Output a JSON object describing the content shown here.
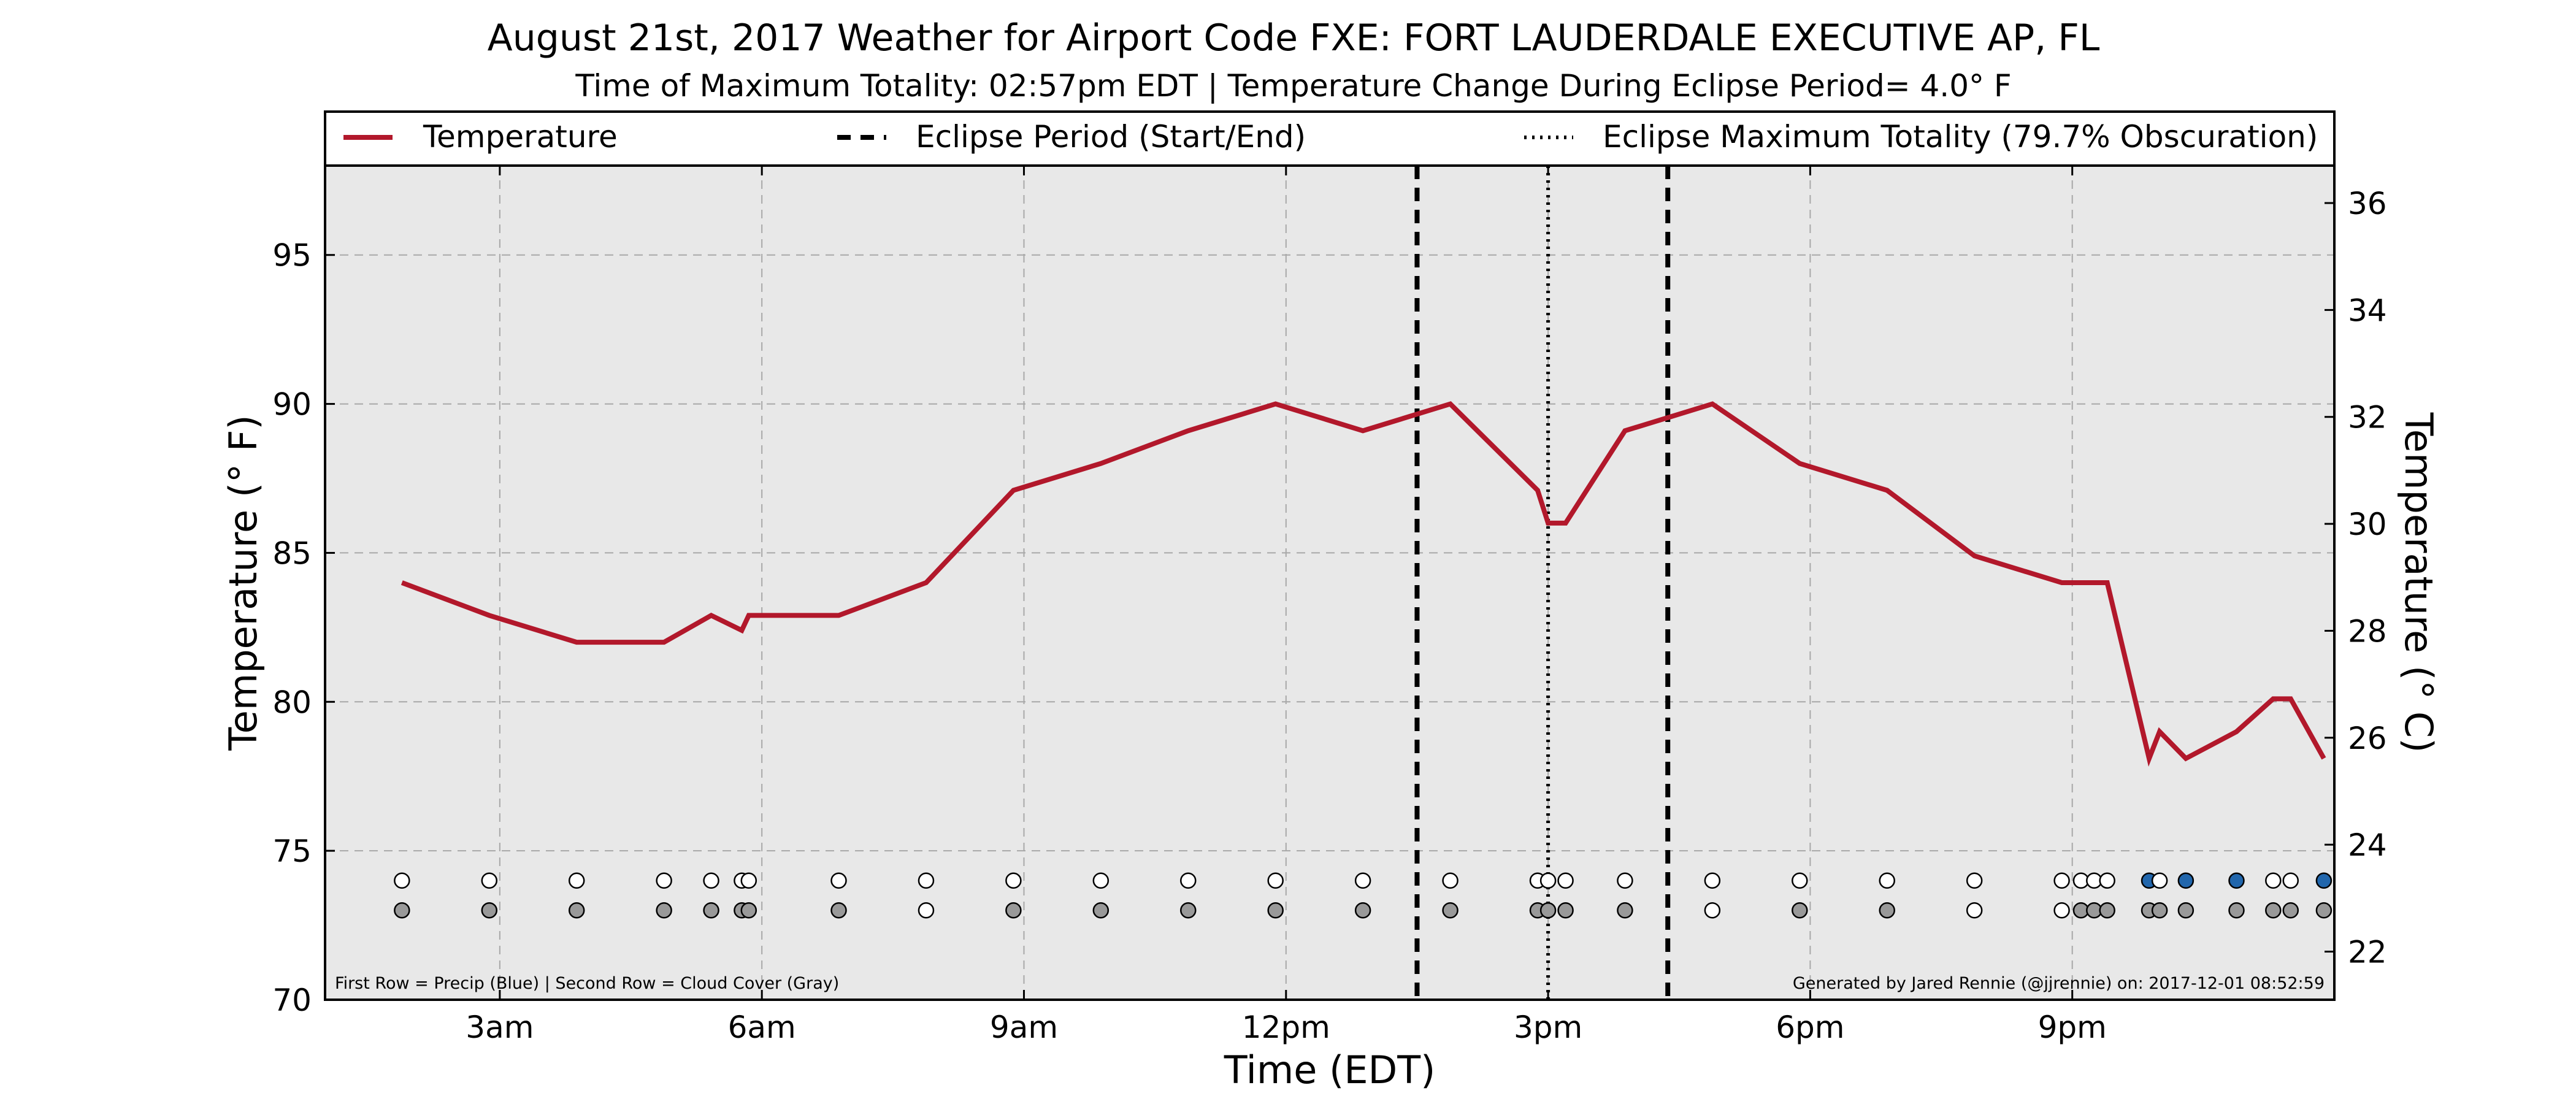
{
  "chart_data": {
    "type": "line",
    "title": "August 21st, 2017 Weather for Airport Code FXE: FORT LAUDERDALE EXECUTIVE AP, FL",
    "subtitle": "Time of Maximum Totality: 02:57pm EDT | Temperature Change During Eclipse Period= 4.0° F",
    "xlabel": "Time (EDT)",
    "ylabel": "Temperature (° F)",
    "ylabel_right": "Temperature (° C)",
    "xlim": [
      1.0,
      24.0
    ],
    "ylim": [
      70,
      98
    ],
    "ylim_right_c": [
      21.1,
      36.7
    ],
    "x_ticks": [
      {
        "x": 3,
        "label": "3am"
      },
      {
        "x": 6,
        "label": "6am"
      },
      {
        "x": 9,
        "label": "9am"
      },
      {
        "x": 12,
        "label": "12pm"
      },
      {
        "x": 15,
        "label": "3pm"
      },
      {
        "x": 18,
        "label": "6pm"
      },
      {
        "x": 21,
        "label": "9pm"
      }
    ],
    "y_ticks": [
      70,
      75,
      80,
      85,
      90,
      95
    ],
    "y_ticks_right": [
      22,
      24,
      26,
      28,
      30,
      32,
      34,
      36
    ],
    "grid": true,
    "legend_placement": "top",
    "legend": [
      {
        "label": "Temperature",
        "style": "solid"
      },
      {
        "label": "Eclipse Period (Start/End)",
        "style": "dashed"
      },
      {
        "label": "Eclipse Maximum Totality (79.7% Obscuration)",
        "style": "dotted"
      }
    ],
    "series": [
      {
        "name": "Temperature",
        "color": "#b2182b",
        "x": [
          1.88,
          2.88,
          3.88,
          4.88,
          5.42,
          5.77,
          5.85,
          6.88,
          7.88,
          8.88,
          9.88,
          10.88,
          11.88,
          12.88,
          13.88,
          14.88,
          15.0,
          15.2,
          15.88,
          16.88,
          17.88,
          18.88,
          19.88,
          20.88,
          21.4,
          21.88,
          22.0,
          22.3,
          22.88,
          23.3,
          23.5,
          23.88
        ],
        "y": [
          84,
          82.9,
          82,
          82,
          82.9,
          82.4,
          82.9,
          82.9,
          84,
          87.1,
          88,
          89.1,
          90,
          89.1,
          90,
          87.1,
          86,
          86,
          89.1,
          90,
          88,
          87.1,
          84.9,
          84,
          84,
          78.1,
          79,
          78.1,
          79,
          80.1,
          80.1,
          78.1
        ]
      }
    ],
    "eclipse_start": 13.5,
    "eclipse_max": 15.0,
    "eclipse_end": 16.37,
    "precip_row": {
      "y": 74,
      "x": [
        1.88,
        2.88,
        3.88,
        4.88,
        5.42,
        5.77,
        5.85,
        6.88,
        7.88,
        8.88,
        9.88,
        10.88,
        11.88,
        12.88,
        13.88,
        14.88,
        15.0,
        15.2,
        15.88,
        16.88,
        17.88,
        18.88,
        19.88,
        20.88,
        21.1,
        21.25,
        21.4,
        21.88,
        22.0,
        22.3,
        22.88,
        23.3,
        23.5,
        23.88
      ],
      "precip": [
        false,
        false,
        false,
        false,
        false,
        false,
        false,
        false,
        false,
        false,
        false,
        false,
        false,
        false,
        false,
        false,
        false,
        false,
        false,
        false,
        false,
        false,
        false,
        false,
        false,
        false,
        false,
        true,
        false,
        true,
        true,
        false,
        false,
        true
      ]
    },
    "cloud_row": {
      "y": 73,
      "x": [
        1.88,
        2.88,
        3.88,
        4.88,
        5.42,
        5.77,
        5.85,
        6.88,
        7.88,
        8.88,
        9.88,
        10.88,
        11.88,
        12.88,
        13.88,
        14.88,
        15.0,
        15.2,
        15.88,
        16.88,
        17.88,
        18.88,
        19.88,
        20.88,
        21.1,
        21.25,
        21.4,
        21.88,
        22.0,
        22.3,
        22.88,
        23.3,
        23.5,
        23.88
      ],
      "cloudy": [
        true,
        true,
        true,
        true,
        true,
        true,
        true,
        true,
        false,
        true,
        true,
        true,
        true,
        true,
        true,
        true,
        true,
        true,
        true,
        false,
        true,
        true,
        false,
        false,
        true,
        true,
        true,
        true,
        true,
        true,
        true,
        true,
        true,
        true
      ]
    },
    "colors": {
      "temperature": "#b2182b",
      "precip": "#2166ac",
      "cloud": "#999999",
      "plot_background": "#e8e8e8"
    }
  },
  "notes": {
    "left": "First Row = Precip (Blue) | Second Row = Cloud Cover (Gray)",
    "right": "Generated by Jared Rennie (@jjrennie) on: 2017-12-01 08:52:59"
  }
}
